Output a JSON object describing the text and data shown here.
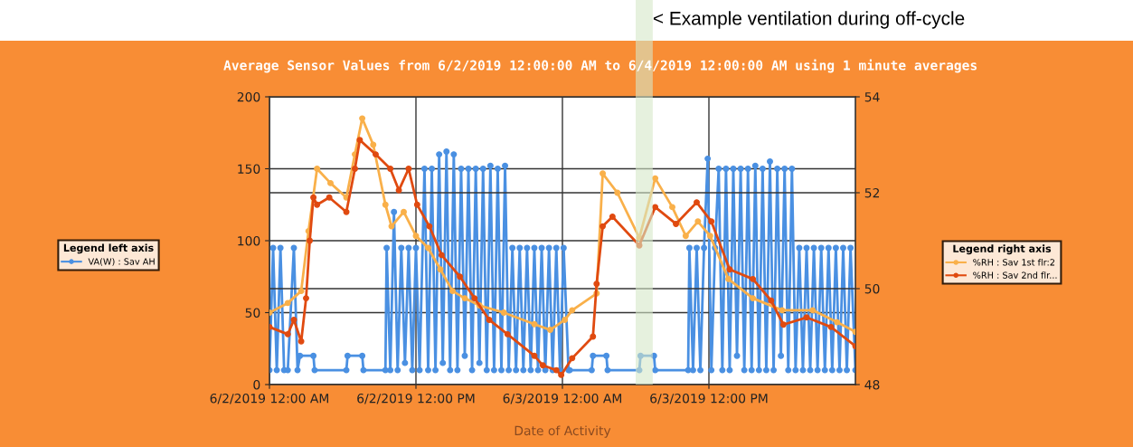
{
  "chart_data": {
    "type": "line",
    "title": "Average Sensor Values from 6/2/2019 12:00:00 AM to 6/4/2019 12:00:00 AM using 1 minute averages",
    "xlabel": "Date of Activity",
    "legend_title": [
      "Legend left axis",
      "Legend right axis"
    ],
    "xlim": [
      "2019-06-02T00:00",
      "2019-06-04T00:00"
    ],
    "xticks": [
      {
        "value": "2019-06-02T00:00",
        "label": "6/2/2019 12:00 AM"
      },
      {
        "value": "2019-06-02T12:00",
        "label": "6/2/2019 12:00 PM"
      },
      {
        "value": "2019-06-03T00:00",
        "label": "6/3/2019 12:00 AM"
      },
      {
        "value": "2019-06-03T12:00",
        "label": "6/3/2019 12:00 PM"
      }
    ],
    "ylim": [
      0,
      200
    ],
    "yticks": [
      0,
      50,
      100,
      150,
      200
    ],
    "y2lim": [
      48,
      54
    ],
    "y2ticks": [
      48,
      50,
      52,
      54
    ],
    "grid": true,
    "legend": "left",
    "marker": "circle",
    "line_style": "solid",
    "bands": [
      {
        "axis": "x",
        "from": "2019-06-03T06:00",
        "to": "2019-06-03T07:24",
        "label": "< Example ventilation during off-cycle",
        "color": "#d6e8c8"
      }
    ],
    "series": [
      {
        "name": "VA(W) : Sav AH",
        "color": "#4a90e2",
        "axis": "y",
        "x": [
          "2019-06-02T00:00",
          "2019-06-02T00:18",
          "2019-06-02T00:36",
          "2019-06-02T00:54",
          "2019-06-02T01:12",
          "2019-06-02T01:30",
          "2019-06-02T02:00",
          "2019-06-02T02:18",
          "2019-06-02T02:30",
          "2019-06-02T03:36",
          "2019-06-02T03:42",
          "2019-06-02T06:18",
          "2019-06-02T06:24",
          "2019-06-02T07:36",
          "2019-06-02T07:42",
          "2019-06-02T09:30",
          "2019-06-02T09:36",
          "2019-06-02T09:54",
          "2019-06-02T10:12",
          "2019-06-02T10:30",
          "2019-06-02T10:48",
          "2019-06-02T11:06",
          "2019-06-02T11:24",
          "2019-06-02T11:42",
          "2019-06-02T12:00",
          "2019-06-02T12:18",
          "2019-06-02T12:42",
          "2019-06-02T13:00",
          "2019-06-02T13:18",
          "2019-06-02T13:36",
          "2019-06-02T13:54",
          "2019-06-02T14:12",
          "2019-06-02T14:30",
          "2019-06-02T14:48",
          "2019-06-02T15:06",
          "2019-06-02T15:24",
          "2019-06-02T15:42",
          "2019-06-02T16:00",
          "2019-06-02T16:18",
          "2019-06-02T16:36",
          "2019-06-02T16:54",
          "2019-06-02T17:12",
          "2019-06-02T17:30",
          "2019-06-02T17:48",
          "2019-06-02T18:06",
          "2019-06-02T18:24",
          "2019-06-02T18:42",
          "2019-06-02T19:00",
          "2019-06-02T19:18",
          "2019-06-02T19:36",
          "2019-06-02T19:54",
          "2019-06-02T20:12",
          "2019-06-02T20:30",
          "2019-06-02T20:48",
          "2019-06-02T21:06",
          "2019-06-02T21:24",
          "2019-06-02T21:42",
          "2019-06-02T22:00",
          "2019-06-02T22:18",
          "2019-06-02T22:36",
          "2019-06-02T22:54",
          "2019-06-02T23:12",
          "2019-06-02T23:30",
          "2019-06-02T23:48",
          "2019-06-03T00:06",
          "2019-06-03T00:30",
          "2019-06-03T00:36",
          "2019-06-03T02:24",
          "2019-06-03T02:30",
          "2019-06-03T03:36",
          "2019-06-03T03:42",
          "2019-06-03T06:18",
          "2019-06-03T06:24",
          "2019-06-03T07:30",
          "2019-06-03T07:36",
          "2019-06-03T10:18",
          "2019-06-03T10:24",
          "2019-06-03T10:42",
          "2019-06-03T11:00",
          "2019-06-03T11:18",
          "2019-06-03T11:36",
          "2019-06-03T11:54",
          "2019-06-03T12:12",
          "2019-06-03T12:30",
          "2019-06-03T12:48",
          "2019-06-03T13:06",
          "2019-06-03T13:24",
          "2019-06-03T13:42",
          "2019-06-03T14:00",
          "2019-06-03T14:18",
          "2019-06-03T14:36",
          "2019-06-03T14:54",
          "2019-06-03T15:12",
          "2019-06-03T15:30",
          "2019-06-03T15:48",
          "2019-06-03T16:06",
          "2019-06-03T16:24",
          "2019-06-03T16:42",
          "2019-06-03T17:00",
          "2019-06-03T17:18",
          "2019-06-03T17:36",
          "2019-06-03T17:54",
          "2019-06-03T18:12",
          "2019-06-03T18:30",
          "2019-06-03T18:48",
          "2019-06-03T19:06",
          "2019-06-03T19:24",
          "2019-06-03T19:42",
          "2019-06-03T20:00",
          "2019-06-03T20:18",
          "2019-06-03T20:36",
          "2019-06-03T20:54",
          "2019-06-03T21:12",
          "2019-06-03T21:30",
          "2019-06-03T21:48",
          "2019-06-03T22:06",
          "2019-06-03T22:24",
          "2019-06-03T22:42",
          "2019-06-03T23:00",
          "2019-06-03T23:18",
          "2019-06-03T23:36",
          "2019-06-04T00:00"
        ],
        "values": [
          10,
          95,
          10,
          95,
          10,
          10,
          95,
          10,
          20,
          20,
          10,
          10,
          20,
          20,
          10,
          10,
          95,
          10,
          120,
          10,
          95,
          15,
          95,
          10,
          95,
          10,
          150,
          10,
          150,
          10,
          160,
          15,
          162,
          10,
          160,
          10,
          150,
          20,
          150,
          10,
          150,
          15,
          150,
          10,
          152,
          10,
          150,
          10,
          152,
          10,
          95,
          10,
          95,
          10,
          95,
          10,
          95,
          10,
          95,
          10,
          95,
          10,
          95,
          10,
          95,
          10,
          10,
          10,
          20,
          20,
          10,
          10,
          20,
          20,
          10,
          10,
          95,
          10,
          95,
          10,
          95,
          157,
          10,
          95,
          150,
          10,
          150,
          10,
          150,
          20,
          150,
          10,
          150,
          10,
          152,
          10,
          150,
          10,
          155,
          10,
          150,
          20,
          150,
          10,
          150,
          10,
          95,
          10,
          95,
          10,
          95,
          10,
          95,
          10,
          95,
          10,
          95,
          10,
          95,
          10,
          95,
          10
        ]
      },
      {
        "name": "%RH : Sav 1st flr:2",
        "color": "#f9b04a",
        "axis": "y2",
        "x": [
          "2019-06-02T00:00",
          "2019-06-02T01:30",
          "2019-06-02T02:36",
          "2019-06-02T03:12",
          "2019-06-02T03:54",
          "2019-06-02T05:00",
          "2019-06-02T06:18",
          "2019-06-02T07:00",
          "2019-06-02T07:36",
          "2019-06-02T08:30",
          "2019-06-02T09:30",
          "2019-06-02T10:00",
          "2019-06-02T11:00",
          "2019-06-02T12:00",
          "2019-06-02T13:00",
          "2019-06-02T14:00",
          "2019-06-02T15:00",
          "2019-06-02T16:00",
          "2019-06-02T17:12",
          "2019-06-02T19:12",
          "2019-06-02T21:42",
          "2019-06-02T23:00",
          "2019-06-03T00:12",
          "2019-06-03T00:48",
          "2019-06-03T02:48",
          "2019-06-03T03:18",
          "2019-06-03T04:30",
          "2019-06-03T06:18",
          "2019-06-03T07:36",
          "2019-06-03T09:00",
          "2019-06-03T10:06",
          "2019-06-03T11:06",
          "2019-06-03T12:06",
          "2019-06-03T13:36",
          "2019-06-03T15:36",
          "2019-06-03T18:00",
          "2019-06-03T20:30",
          "2019-06-03T22:30",
          "2019-06-04T00:00"
        ],
        "values": [
          49.5,
          49.7,
          49.95,
          51.2,
          52.5,
          52.2,
          51.9,
          52.8,
          53.55,
          53.0,
          51.75,
          51.3,
          51.6,
          51.1,
          50.85,
          50.4,
          49.95,
          49.8,
          49.65,
          49.5,
          49.26,
          49.14,
          49.35,
          49.55,
          49.9,
          52.4,
          52.0,
          51.06,
          52.3,
          51.7,
          51.1,
          51.4,
          51.1,
          50.2,
          49.8,
          49.55,
          49.55,
          49.3,
          49.1
        ]
      },
      {
        "name": "%RH : Sav 2nd flr...",
        "color": "#e04a10",
        "axis": "y2",
        "x": [
          "2019-06-02T00:00",
          "2019-06-02T01:30",
          "2019-06-02T02:00",
          "2019-06-02T02:36",
          "2019-06-02T03:00",
          "2019-06-02T03:18",
          "2019-06-02T03:36",
          "2019-06-02T03:54",
          "2019-06-02T04:54",
          "2019-06-02T06:18",
          "2019-06-02T07:00",
          "2019-06-02T07:24",
          "2019-06-02T08:42",
          "2019-06-02T09:54",
          "2019-06-02T10:36",
          "2019-06-02T11:24",
          "2019-06-02T12:06",
          "2019-06-02T13:06",
          "2019-06-02T14:06",
          "2019-06-02T15:36",
          "2019-06-02T16:48",
          "2019-06-02T18:00",
          "2019-06-02T19:30",
          "2019-06-02T21:42",
          "2019-06-02T22:24",
          "2019-06-02T23:30",
          "2019-06-02T23:54",
          "2019-06-03T00:48",
          "2019-06-03T02:30",
          "2019-06-03T02:48",
          "2019-06-03T03:18",
          "2019-06-03T04:06",
          "2019-06-03T06:18",
          "2019-06-03T07:36",
          "2019-06-03T09:18",
          "2019-06-03T11:00",
          "2019-06-03T12:12",
          "2019-06-03T13:42",
          "2019-06-03T15:36",
          "2019-06-03T17:06",
          "2019-06-03T18:06",
          "2019-06-03T20:00",
          "2019-06-03T22:00",
          "2019-06-04T00:00"
        ],
        "values": [
          49.2,
          49.05,
          49.35,
          48.9,
          49.8,
          51.0,
          51.9,
          51.75,
          51.9,
          51.6,
          52.5,
          53.1,
          52.8,
          52.5,
          52.05,
          52.5,
          51.75,
          51.3,
          50.7,
          50.25,
          49.8,
          49.35,
          49.05,
          48.6,
          48.4,
          48.3,
          48.2,
          48.55,
          49.0,
          50.1,
          51.3,
          51.5,
          50.9,
          51.7,
          51.35,
          51.8,
          51.4,
          50.4,
          50.2,
          49.75,
          49.25,
          49.4,
          49.2,
          48.8
        ]
      }
    ]
  }
}
